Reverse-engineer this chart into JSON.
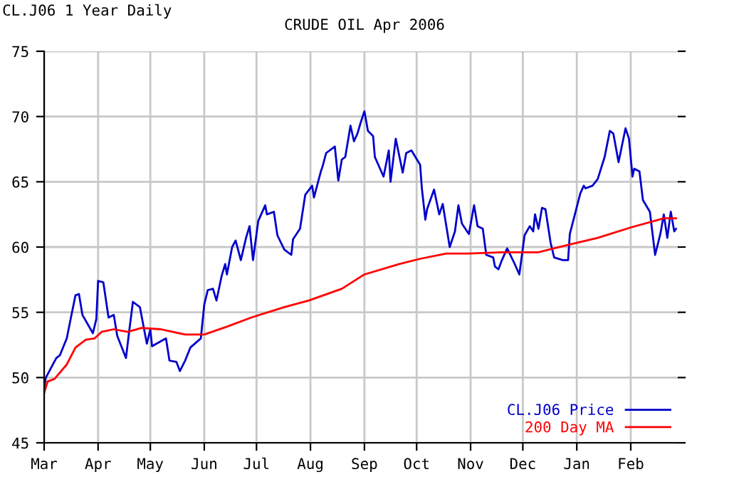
{
  "chart_data": {
    "type": "line",
    "title": "CRUDE OIL Apr 2006",
    "annotations": [
      "CL.J06 1 Year Daily"
    ],
    "series": [
      {
        "name": "CL.J06 Price",
        "color": "#0000cc",
        "x": [
          "2005-03-01",
          "2005-03-02",
          "2005-03-08",
          "2005-03-10",
          "2005-03-14",
          "2005-03-17",
          "2005-03-19",
          "2005-03-21",
          "2005-03-23",
          "2005-03-29",
          "2005-03-31",
          "2005-04-01",
          "2005-04-04",
          "2005-04-07",
          "2005-04-10",
          "2005-04-12",
          "2005-04-17",
          "2005-04-19",
          "2005-04-21",
          "2005-04-25",
          "2005-04-29",
          "2005-05-01",
          "2005-05-02",
          "2005-05-10",
          "2005-05-12",
          "2005-05-16",
          "2005-05-18",
          "2005-05-21",
          "2005-05-24",
          "2005-05-30",
          "2005-06-01",
          "2005-06-03",
          "2005-06-06",
          "2005-06-08",
          "2005-06-11",
          "2005-06-13",
          "2005-06-14",
          "2005-06-17",
          "2005-06-19",
          "2005-06-22",
          "2005-06-25",
          "2005-06-27",
          "2005-06-29",
          "2005-07-02",
          "2005-07-06",
          "2005-07-07",
          "2005-07-11",
          "2005-07-13",
          "2005-07-17",
          "2005-07-21",
          "2005-07-22",
          "2005-07-26",
          "2005-07-29",
          "2005-08-02",
          "2005-08-03",
          "2005-08-07",
          "2005-08-08",
          "2005-08-10",
          "2005-08-15",
          "2005-08-17",
          "2005-08-19",
          "2005-08-21",
          "2005-08-24",
          "2005-08-26",
          "2005-08-28",
          "2005-08-30",
          "2005-09-01",
          "2005-09-03",
          "2005-09-06",
          "2005-09-07",
          "2005-09-12",
          "2005-09-15",
          "2005-09-16",
          "2005-09-19",
          "2005-09-21",
          "2005-09-23",
          "2005-09-25",
          "2005-09-28",
          "2005-10-03",
          "2005-10-04",
          "2005-10-06",
          "2005-10-07",
          "2005-10-11",
          "2005-10-14",
          "2005-10-16",
          "2005-10-20",
          "2005-10-23",
          "2005-10-25",
          "2005-10-27",
          "2005-10-31",
          "2005-11-03",
          "2005-11-05",
          "2005-11-08",
          "2005-11-10",
          "2005-11-14",
          "2005-11-15",
          "2005-11-17",
          "2005-11-19",
          "2005-11-22",
          "2005-11-26",
          "2005-11-29",
          "2005-12-02",
          "2005-12-05",
          "2005-12-07",
          "2005-12-08",
          "2005-12-10",
          "2005-12-12",
          "2005-12-14",
          "2005-12-17",
          "2005-12-19",
          "2005-12-24",
          "2005-12-27",
          "2005-12-28",
          "2006-01-03",
          "2006-01-05",
          "2006-01-06",
          "2006-01-10",
          "2006-01-13",
          "2006-01-17",
          "2006-01-20",
          "2006-01-22",
          "2006-01-25",
          "2006-01-29",
          "2006-01-31",
          "2006-02-02",
          "2006-02-03",
          "2006-02-06",
          "2006-02-08",
          "2006-02-12",
          "2006-02-15",
          "2006-02-18",
          "2006-02-20",
          "2006-02-22",
          "2006-02-24",
          "2006-02-26",
          "2006-02-27"
        ],
        "values": [
          49.2,
          50.0,
          51.5,
          51.7,
          53.0,
          55.0,
          56.3,
          56.4,
          54.8,
          53.4,
          54.5,
          57.4,
          57.3,
          54.6,
          54.8,
          53.2,
          51.5,
          53.7,
          55.8,
          55.4,
          52.6,
          53.7,
          52.4,
          53.0,
          51.3,
          51.2,
          50.5,
          51.3,
          52.3,
          53.0,
          55.6,
          56.7,
          56.8,
          55.9,
          57.8,
          58.7,
          57.9,
          60.0,
          60.5,
          59.0,
          60.7,
          61.6,
          59.0,
          62.0,
          63.2,
          62.5,
          62.7,
          60.9,
          59.8,
          59.4,
          60.6,
          61.4,
          64.0,
          64.7,
          63.8,
          65.8,
          66.2,
          67.2,
          67.7,
          65.1,
          66.7,
          66.9,
          69.3,
          68.1,
          68.7,
          69.6,
          70.4,
          68.9,
          68.5,
          66.9,
          65.4,
          67.4,
          65.0,
          68.3,
          67.0,
          65.7,
          67.2,
          67.4,
          66.3,
          64.5,
          62.1,
          62.9,
          64.4,
          62.5,
          63.3,
          60.0,
          61.2,
          63.2,
          61.8,
          61.0,
          63.2,
          61.6,
          61.4,
          59.4,
          59.2,
          58.5,
          58.3,
          59.0,
          59.9,
          58.8,
          57.9,
          60.9,
          61.6,
          61.2,
          62.5,
          61.4,
          63.0,
          62.9,
          60.3,
          59.2,
          59.0,
          59.0,
          61.0,
          64.1,
          64.7,
          64.5,
          64.7,
          65.2,
          66.9,
          68.9,
          68.7,
          66.5,
          69.1,
          68.3,
          65.4,
          66.0,
          65.8,
          63.6,
          62.7,
          59.4,
          61.0,
          62.5,
          60.7,
          62.7,
          61.2,
          61.4
        ]
      },
      {
        "name": "200 Day MA",
        "color": "#ff0000",
        "x": [
          "2005-03-01",
          "2005-03-03",
          "2005-03-07",
          "2005-03-14",
          "2005-03-19",
          "2005-03-25",
          "2005-03-30",
          "2005-04-03",
          "2005-04-10",
          "2005-04-18",
          "2005-04-26",
          "2005-05-07",
          "2005-05-21",
          "2005-06-01",
          "2005-06-14",
          "2005-06-28",
          "2005-07-17",
          "2005-07-31",
          "2005-08-19",
          "2005-09-01",
          "2005-09-21",
          "2005-10-03",
          "2005-10-18",
          "2005-10-31",
          "2005-11-19",
          "2005-12-10",
          "2005-12-28",
          "2006-01-13",
          "2006-02-01",
          "2006-02-20",
          "2006-02-27"
        ],
        "values": [
          48.8,
          49.7,
          49.9,
          51.0,
          52.3,
          52.9,
          53.0,
          53.5,
          53.7,
          53.5,
          53.8,
          53.7,
          53.3,
          53.3,
          53.9,
          54.6,
          55.4,
          55.9,
          56.8,
          57.9,
          58.7,
          59.1,
          59.5,
          59.5,
          59.6,
          59.6,
          60.2,
          60.7,
          61.5,
          62.2,
          62.2
        ]
      }
    ],
    "xlim": [
      "2005-03-01",
      "2006-02-28"
    ],
    "xticks": [
      {
        "value": "2005-03-01",
        "label": "Mar"
      },
      {
        "value": "2005-04-01",
        "label": "Apr"
      },
      {
        "value": "2005-05-01",
        "label": "May"
      },
      {
        "value": "2005-06-01",
        "label": "Jun"
      },
      {
        "value": "2005-07-01",
        "label": "Jul"
      },
      {
        "value": "2005-08-01",
        "label": "Aug"
      },
      {
        "value": "2005-09-01",
        "label": "Sep"
      },
      {
        "value": "2005-10-01",
        "label": "Oct"
      },
      {
        "value": "2005-11-01",
        "label": "Nov"
      },
      {
        "value": "2005-12-01",
        "label": "Dec"
      },
      {
        "value": "2006-01-01",
        "label": "Jan"
      },
      {
        "value": "2006-02-01",
        "label": "Feb"
      }
    ],
    "ylim": [
      45,
      75
    ],
    "yticks": [
      45,
      50,
      55,
      60,
      65,
      70,
      75
    ],
    "grid": true,
    "legend": "bottom right",
    "marker": "none",
    "line_style": "solid"
  }
}
